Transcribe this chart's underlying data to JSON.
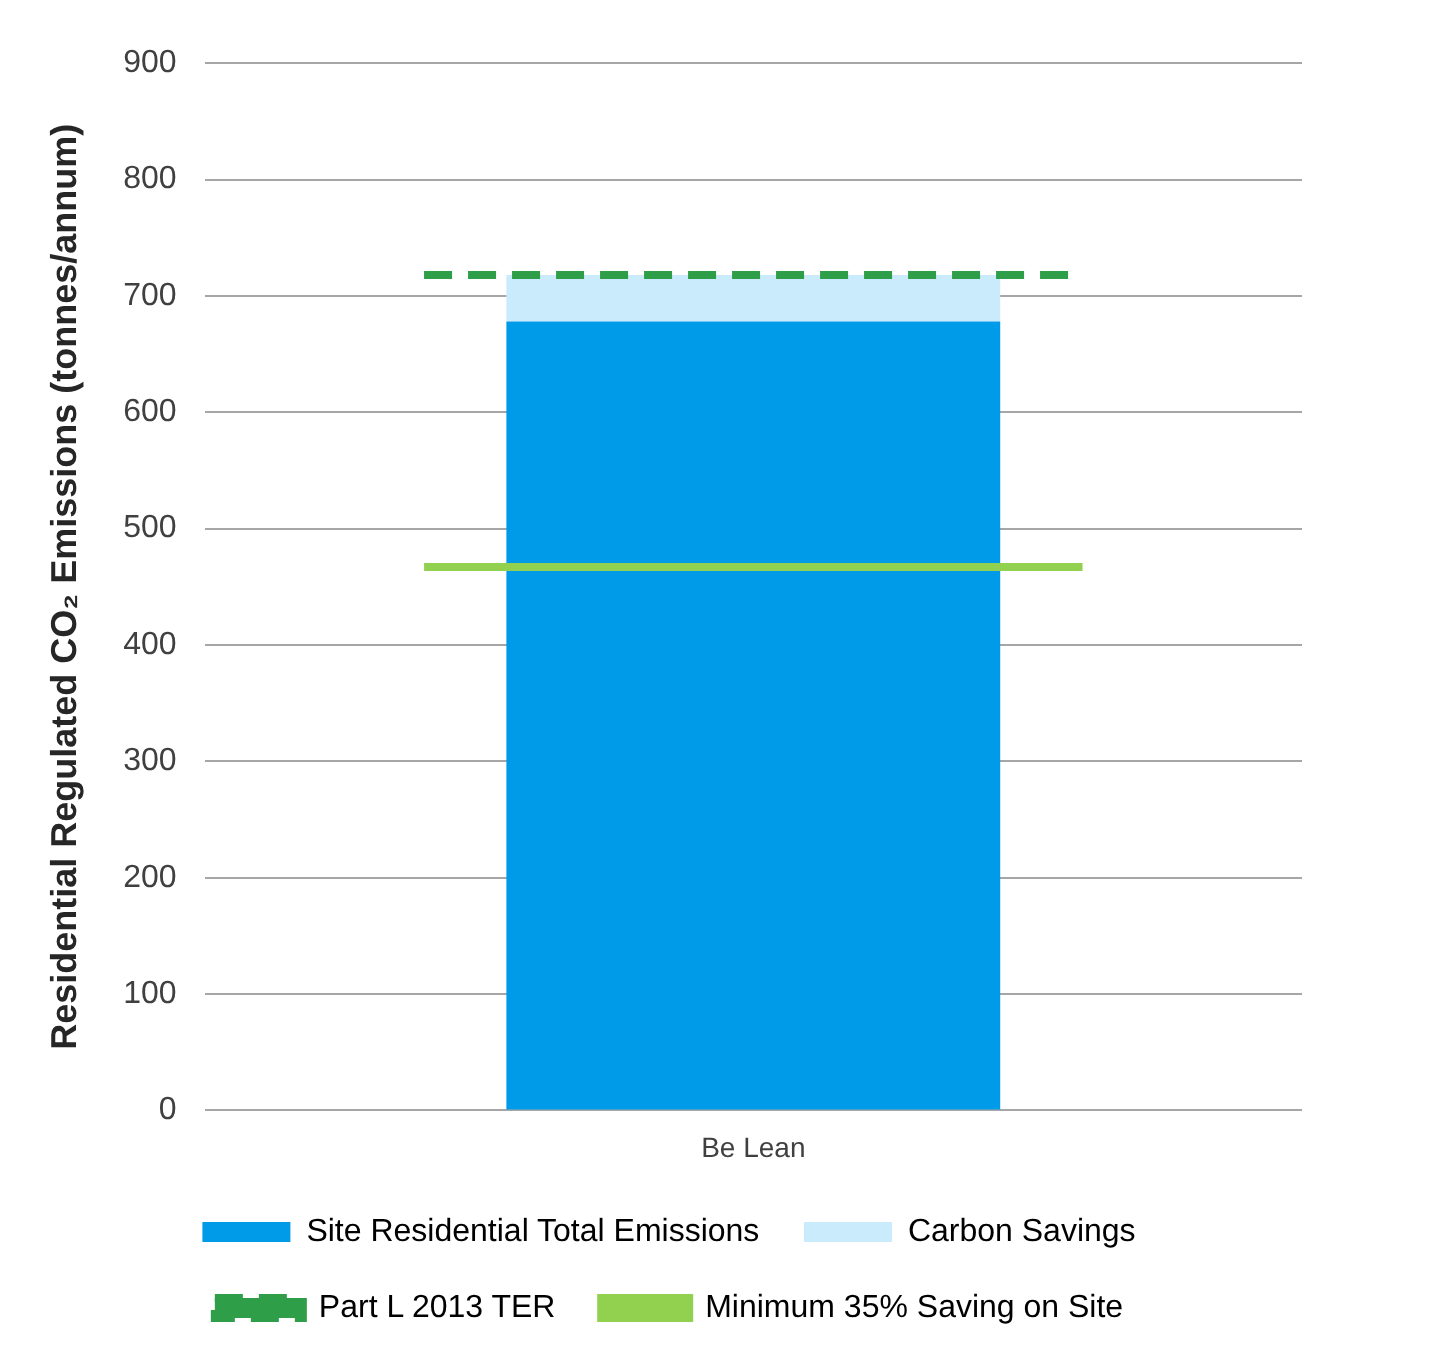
{
  "chart_data": {
    "type": "bar",
    "stacked": true,
    "categories": [
      "Be Lean"
    ],
    "series": [
      {
        "name": "Site Residential Total Emissions",
        "color": "#009be8",
        "values": [
          678
        ]
      },
      {
        "name": "Carbon Savings",
        "color": "#c9ebfc",
        "values": [
          40
        ]
      }
    ],
    "ylabel": "Residential Regulated CO₂ Emissions (tonnes/annum)",
    "ylim": [
      0,
      900
    ],
    "yticks": [
      0,
      100,
      200,
      300,
      400,
      500,
      600,
      700,
      800,
      900
    ],
    "grid": "y",
    "legend": "bottom",
    "ref_lines": [
      {
        "axis": "y",
        "value": 718,
        "label": "Part L 2013 TER",
        "color": "#2e9e48",
        "line_style": "dashed"
      },
      {
        "axis": "y",
        "value": 467,
        "label": "Minimum 35% Saving on Site",
        "color": "#92d050",
        "line_style": "solid"
      }
    ]
  }
}
